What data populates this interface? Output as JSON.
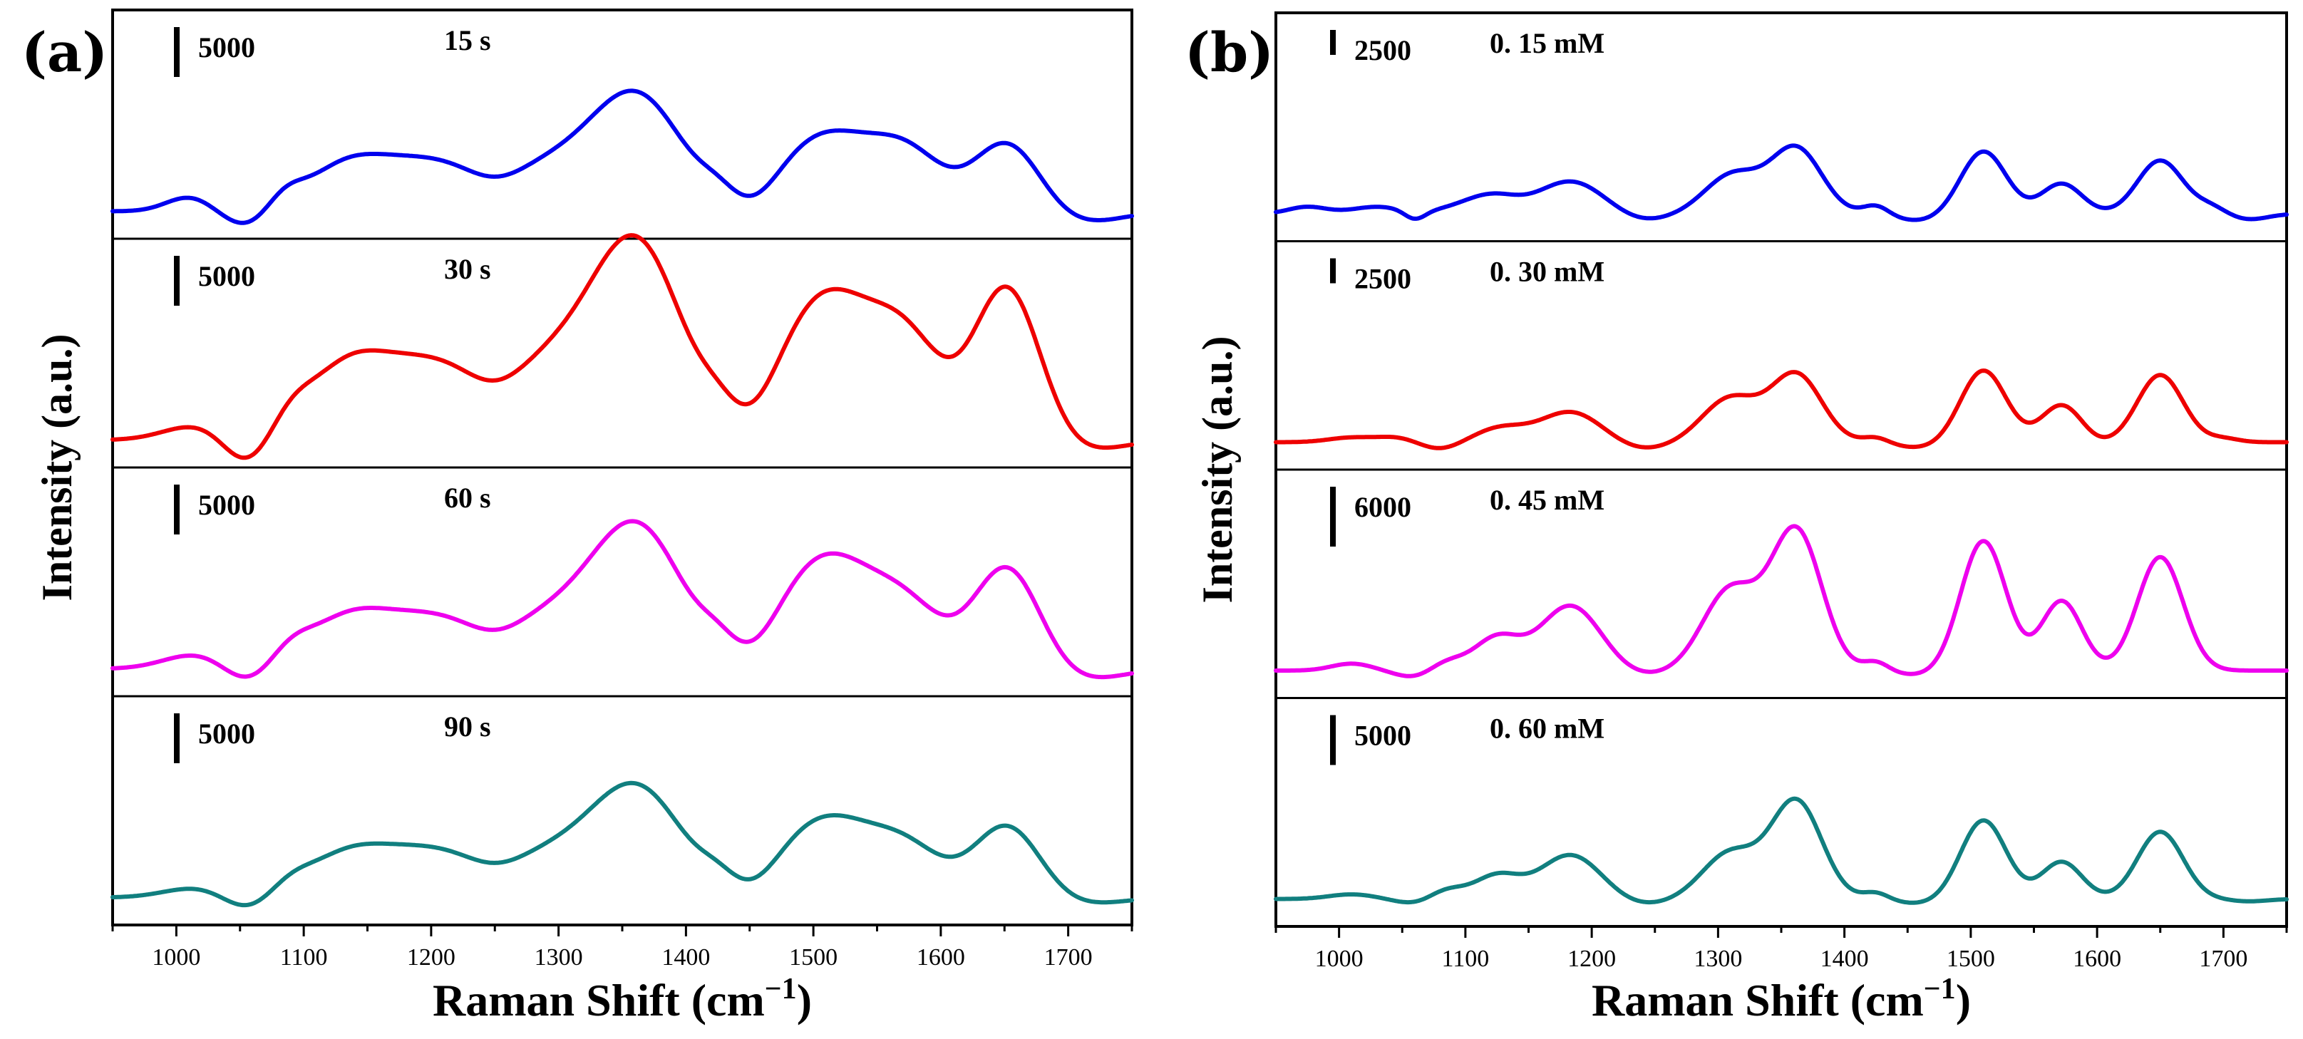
{
  "chart_data": [
    {
      "panel": "(a)",
      "type": "line",
      "xlabel": "Raman Shift (cm",
      "xlabel_sup": "−1",
      "xlabel_close": ")",
      "ylabel": "Intensity (a.u.)",
      "xlim": [
        950,
        1750
      ],
      "xticks": [
        1000,
        1100,
        1200,
        1300,
        1400,
        1500,
        1600,
        1700
      ],
      "series": [
        {
          "name": "15 s",
          "color": "#0000ee",
          "scale_label": "5000",
          "scale_counts": 5000,
          "baseline": 0,
          "bumps": [
            [
              1010,
              18,
              300
            ],
            [
              1085,
              14,
              280
            ],
            [
              1130,
              28,
              500
            ],
            [
              1190,
              55,
              1100
            ],
            [
              1312,
              48,
              1000
            ],
            [
              1365,
              34,
              2000
            ],
            [
              1425,
              14,
              230
            ],
            [
              1510,
              38,
              1640
            ],
            [
              1575,
              28,
              1100
            ],
            [
              1652,
              26,
              1480
            ]
          ],
          "dips": [
            [
              1055,
              18,
              350
            ],
            [
              1250,
              22,
              300
            ],
            [
              1455,
              18,
              300
            ],
            [
              1710,
              30,
              250
            ]
          ]
        },
        {
          "name": "30 s",
          "color": "#ee0000",
          "scale_label": "5000",
          "scale_counts": 5000,
          "baseline": 0,
          "bumps": [
            [
              1015,
              25,
              300
            ],
            [
              1090,
              16,
              360
            ],
            [
              1130,
              28,
              800
            ],
            [
              1190,
              55,
              1700
            ],
            [
              1312,
              48,
              1700
            ],
            [
              1365,
              34,
              3400
            ],
            [
              1425,
              14,
              300
            ],
            [
              1510,
              38,
              3100
            ],
            [
              1575,
              28,
              1800
            ],
            [
              1652,
              26,
              3300
            ]
          ],
          "dips": [
            [
              1055,
              18,
              600
            ],
            [
              1250,
              22,
              400
            ],
            [
              1455,
              18,
              350
            ],
            [
              1710,
              30,
              250
            ]
          ]
        },
        {
          "name": "60 s",
          "color": "#ee00ee",
          "scale_label": "5000",
          "scale_counts": 5000,
          "baseline": 0,
          "bumps": [
            [
              1015,
              25,
              300
            ],
            [
              1090,
              16,
              300
            ],
            [
              1130,
              28,
              550
            ],
            [
              1190,
              55,
              1150
            ],
            [
              1312,
              48,
              1150
            ],
            [
              1365,
              34,
              2500
            ],
            [
              1425,
              14,
              300
            ],
            [
              1510,
              38,
              2400
            ],
            [
              1575,
              28,
              1100
            ],
            [
              1652,
              26,
              2200
            ]
          ],
          "dips": [
            [
              1055,
              18,
              350
            ],
            [
              1250,
              22,
              300
            ],
            [
              1455,
              18,
              300
            ],
            [
              1710,
              30,
              250
            ]
          ]
        },
        {
          "name": "90 s",
          "color": "#117f7f",
          "scale_label": "5000",
          "scale_counts": 5000,
          "baseline": 0,
          "bumps": [
            [
              1015,
              25,
              200
            ],
            [
              1090,
              16,
              200
            ],
            [
              1130,
              28,
              450
            ],
            [
              1190,
              55,
              1050
            ],
            [
              1312,
              48,
              950
            ],
            [
              1365,
              34,
              1900
            ],
            [
              1425,
              14,
              240
            ],
            [
              1510,
              38,
              1700
            ],
            [
              1575,
              28,
              900
            ],
            [
              1652,
              26,
              1550
            ]
          ],
          "dips": [
            [
              1055,
              18,
              300
            ],
            [
              1250,
              22,
              250
            ],
            [
              1455,
              18,
              250
            ],
            [
              1710,
              30,
              150
            ]
          ]
        }
      ]
    },
    {
      "panel": "(b)",
      "type": "line",
      "xlabel": "Raman Shift (cm",
      "xlabel_sup": "−1",
      "xlabel_close": ")",
      "ylabel": "Intensity (a.u.)",
      "xlim": [
        950,
        1750
      ],
      "xticks": [
        1000,
        1100,
        1200,
        1300,
        1400,
        1500,
        1600,
        1700
      ],
      "series": [
        {
          "name": "0. 15 mM",
          "color": "#0000ee",
          "scale_label": "2500",
          "scale_counts": 2500,
          "baseline": 0,
          "bumps": [
            [
              975,
              15,
              150
            ],
            [
              1030,
              20,
              150
            ],
            [
              1105,
              22,
              200
            ],
            [
              1125,
              18,
              250
            ],
            [
              1183,
              26,
              700
            ],
            [
              1312,
              22,
              850
            ],
            [
              1362,
              20,
              1400
            ],
            [
              1425,
              10,
              200
            ],
            [
              1510,
              18,
              1350
            ],
            [
              1572,
              16,
              650
            ],
            [
              1650,
              18,
              1150
            ],
            [
              1690,
              12,
              150
            ]
          ],
          "dips": [
            [
              1060,
              8,
              180
            ],
            [
              1240,
              20,
              150
            ],
            [
              1460,
              20,
              150
            ],
            [
              1720,
              15,
              120
            ]
          ]
        },
        {
          "name": "0. 30 mM",
          "color": "#ee0000",
          "scale_label": "2500",
          "scale_counts": 2500,
          "baseline": 0,
          "bumps": [
            [
              1010,
              18,
              100
            ],
            [
              1045,
              15,
              100
            ],
            [
              1128,
              20,
              300
            ],
            [
              1183,
              24,
              650
            ],
            [
              1310,
              22,
              950
            ],
            [
              1362,
              20,
              1450
            ],
            [
              1425,
              10,
              120
            ],
            [
              1510,
              18,
              1550
            ],
            [
              1572,
              16,
              800
            ],
            [
              1650,
              18,
              1450
            ],
            [
              1700,
              12,
              80
            ]
          ],
          "dips": [
            [
              1080,
              15,
              150
            ],
            [
              1240,
              20,
              150
            ],
            [
              1460,
              20,
              120
            ],
            [
              1600,
              12,
              50
            ]
          ]
        },
        {
          "name": "0. 45 mM",
          "color": "#ee00ee",
          "scale_label": "6000",
          "scale_counts": 6000,
          "baseline": 0,
          "bumps": [
            [
              1010,
              16,
              150
            ],
            [
              1085,
              14,
              200
            ],
            [
              1125,
              18,
              700
            ],
            [
              1183,
              24,
              1400
            ],
            [
              1310,
              22,
              1750
            ],
            [
              1362,
              20,
              3000
            ],
            [
              1425,
              10,
              200
            ],
            [
              1510,
              18,
              2800
            ],
            [
              1572,
              16,
              1500
            ],
            [
              1650,
              18,
              2450
            ]
          ],
          "dips": [
            [
              1060,
              15,
              150
            ],
            [
              1240,
              20,
              100
            ],
            [
              1460,
              20,
              100
            ]
          ]
        },
        {
          "name": "0. 60 mM",
          "color": "#117f7f",
          "scale_label": "5000",
          "scale_counts": 5000,
          "baseline": 0,
          "bumps": [
            [
              1010,
              18,
              100
            ],
            [
              1085,
              14,
              200
            ],
            [
              1125,
              18,
              500
            ],
            [
              1183,
              24,
              950
            ],
            [
              1310,
              22,
              1000
            ],
            [
              1362,
              20,
              2100
            ],
            [
              1425,
              10,
              150
            ],
            [
              1510,
              18,
              1700
            ],
            [
              1572,
              16,
              800
            ],
            [
              1650,
              18,
              1450
            ]
          ],
          "dips": [
            [
              1060,
              15,
              100
            ],
            [
              1240,
              20,
              120
            ],
            [
              1460,
              20,
              100
            ],
            [
              1720,
              15,
              50
            ]
          ]
        }
      ]
    }
  ]
}
